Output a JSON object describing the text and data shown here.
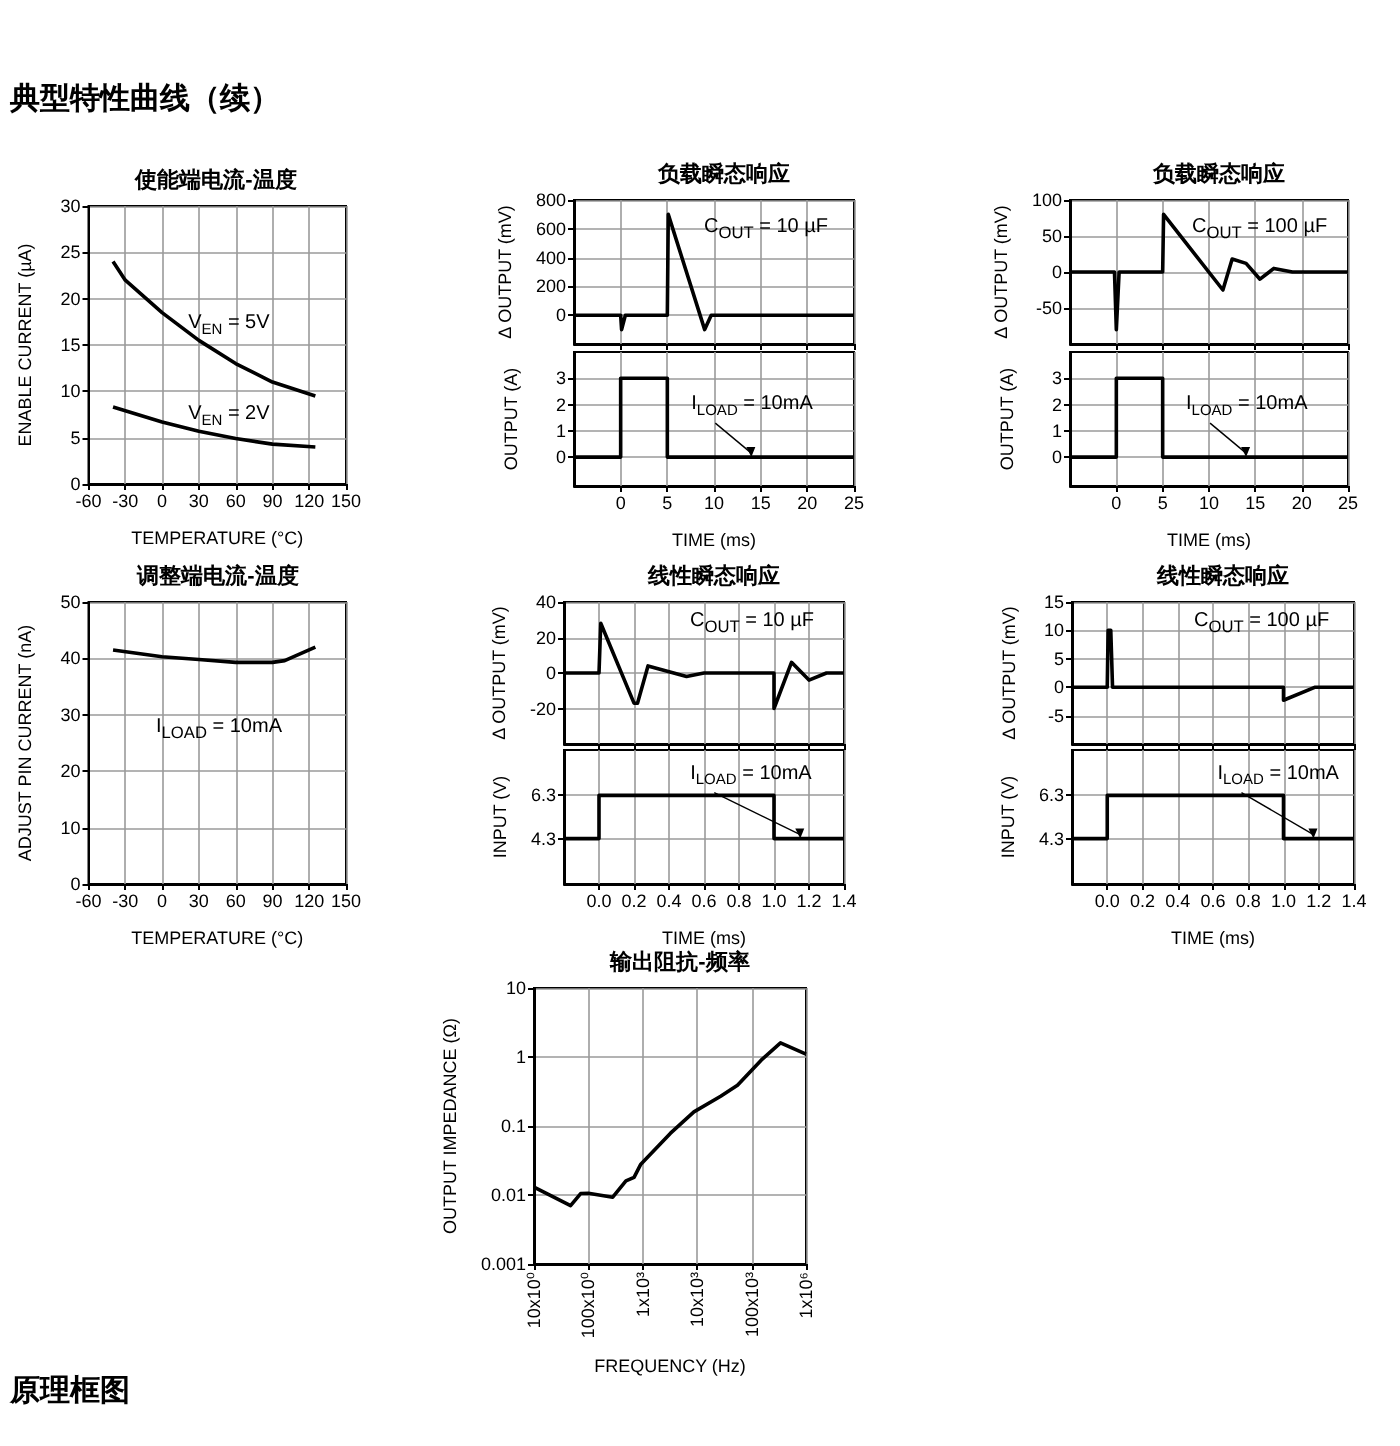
{
  "chart_data": [
    {
      "type": "line",
      "title": "使能端电流-温度",
      "xlabel": "TEMPERATURE (°C)",
      "ylabel": "ENABLE CURRENT (µA)",
      "xlim": [
        -60,
        150
      ],
      "xticks": [
        -60,
        -30,
        0,
        30,
        60,
        90,
        120,
        150
      ],
      "ylim": [
        0,
        30
      ],
      "yticks": [
        0,
        5,
        10,
        15,
        20,
        25,
        30
      ],
      "grid": true,
      "annotations": [
        "典型特性曲线（续）"
      ],
      "series": [
        {
          "name": "V$_{EN}$ = 5V",
          "color": "#000000",
          "x": [
            -40,
            -30,
            0,
            30,
            60,
            90,
            125
          ],
          "values": [
            24,
            22,
            18.5,
            15.5,
            13,
            11,
            9.5
          ]
        },
        {
          "name": "V$_{EN}$ = 2V",
          "color": "#000000",
          "x": [
            -40,
            0,
            30,
            60,
            90,
            125
          ],
          "values": [
            8.3,
            6.7,
            5.7,
            4.9,
            4.3,
            4
          ]
        }
      ]
    },
    {
      "type": "line",
      "title": "负载瞬态响应",
      "ylabel": "Δ OUTPUT (mV)",
      "xlim": [
        -5,
        25
      ],
      "xticks": [
        0,
        5,
        10,
        15,
        20,
        25
      ],
      "ylim": [
        -200,
        800
      ],
      "yticks": [
        0,
        200,
        400,
        600,
        800
      ],
      "tick_labels": "y",
      "grid": true,
      "annotations": [
        "C$_{OUT}$ = 10 µF"
      ],
      "series": [
        {
          "color": "#000000",
          "x": [
            -5,
            0,
            0.1,
            0.5,
            5,
            5.1,
            9,
            9.7,
            25
          ],
          "values": [
            0,
            0,
            -100,
            0,
            0,
            700,
            -100,
            0,
            0
          ]
        }
      ]
    },
    {
      "type": "line",
      "xlabel": "TIME (ms)",
      "ylabel": "OUTPUT (A)",
      "xlim": [
        -5,
        25
      ],
      "xticks": [
        0,
        5,
        10,
        15,
        20,
        25
      ],
      "ylim": [
        -1.1,
        4
      ],
      "yticks": [
        0,
        1,
        2,
        3
      ],
      "grid": true,
      "annotations": [
        {
          "text": "I$_{LOAD}$ = 10mA",
          "x": 14,
          "y": 0
        }
      ],
      "series": [
        {
          "color": "#000000",
          "x": [
            -5,
            0,
            0,
            5,
            5,
            25
          ],
          "values": [
            0,
            0,
            3,
            3,
            0,
            0
          ]
        }
      ]
    },
    {
      "type": "line",
      "title": "负载瞬态响应",
      "ylabel": "Δ OUTPUT (mV)",
      "xlim": [
        -5,
        25
      ],
      "xticks": [
        0,
        5,
        10,
        15,
        20,
        25
      ],
      "ylim": [
        -100,
        100
      ],
      "yticks": [
        -50,
        0,
        50,
        100
      ],
      "tick_labels": "y",
      "grid": true,
      "annotations": [
        "C$_{OUT}$ = 100 µF"
      ],
      "series": [
        {
          "color": "#000000",
          "x": [
            -5,
            -0.2,
            0,
            0.3,
            5,
            5.1,
            11.5,
            12.5,
            14,
            15.5,
            17,
            19,
            25
          ],
          "values": [
            0,
            0,
            -80,
            0,
            0,
            80,
            -25,
            18,
            12,
            -10,
            5,
            0,
            0
          ]
        }
      ]
    },
    {
      "type": "line",
      "xlabel": "TIME (ms)",
      "ylabel": "OUTPUT (A)",
      "xlim": [
        -5,
        25
      ],
      "xticks": [
        0,
        5,
        10,
        15,
        20,
        25
      ],
      "ylim": [
        -1.1,
        4
      ],
      "yticks": [
        0,
        1,
        2,
        3
      ],
      "grid": true,
      "annotations": [
        {
          "text": "I$_{LOAD}$ = 10mA",
          "x": 14,
          "y": 0
        }
      ],
      "series": [
        {
          "color": "#000000",
          "x": [
            -5,
            0,
            0,
            5,
            5,
            25
          ],
          "values": [
            0,
            0,
            3,
            3,
            0,
            0
          ]
        }
      ]
    },
    {
      "type": "line",
      "title": "调整端电流-温度",
      "xlabel": "TEMPERATURE (°C)",
      "ylabel": "ADJUST PIN CURRENT (nA)",
      "xlim": [
        -60,
        150
      ],
      "xticks": [
        -60,
        -30,
        0,
        30,
        60,
        90,
        120,
        150
      ],
      "ylim": [
        0,
        50
      ],
      "yticks": [
        0,
        10,
        20,
        30,
        40,
        50
      ],
      "grid": true,
      "annotations": [
        "I$_{LOAD}$ = 10mA"
      ],
      "series": [
        {
          "color": "#000000",
          "x": [
            -40,
            0,
            30,
            60,
            90,
            100,
            125
          ],
          "values": [
            41.5,
            40.3,
            39.8,
            39.3,
            39.3,
            39.6,
            42
          ]
        }
      ]
    },
    {
      "type": "line",
      "title": "线性瞬态响应",
      "ylabel": "Δ OUTPUT (mV)",
      "xlim": [
        -0.2,
        1.4
      ],
      "xticks": [
        0,
        0.2,
        0.4,
        0.6,
        0.8,
        1,
        1.2,
        1.4
      ],
      "ylim": [
        -40,
        40
      ],
      "yticks": [
        -20,
        0,
        20,
        40
      ],
      "tick_labels": "y",
      "grid": true,
      "annotations": [
        "C$_{OUT}$ = 10 µF"
      ],
      "series": [
        {
          "color": "#000000",
          "x": [
            -0.2,
            0,
            0.01,
            0.2,
            0.22,
            0.28,
            0.5,
            0.6,
            1,
            1,
            1.1,
            1.2,
            1.3,
            1.4
          ],
          "values": [
            0,
            0,
            28,
            -17,
            -17,
            4,
            -2,
            0,
            0,
            -20,
            6,
            -4,
            0,
            0
          ]
        }
      ]
    },
    {
      "type": "line",
      "xlabel": "TIME (ms)",
      "ylabel": "INPUT (V)",
      "xlim": [
        -0.2,
        1.4
      ],
      "xticks": [
        {
          "value": 0,
          "label": "0.0"
        },
        0.2,
        0.4,
        0.6,
        0.8,
        {
          "value": 1,
          "label": "1.0"
        },
        1.2,
        1.4
      ],
      "ylim": [
        2.2,
        8.4
      ],
      "yticks": [
        4.3,
        6.3
      ],
      "grid": true,
      "annotations": [
        {
          "text": "I$_{LOAD}$ = 10mA",
          "x": 1.15,
          "y": 4.3
        }
      ],
      "series": [
        {
          "color": "#000000",
          "x": [
            -0.2,
            0,
            0,
            1,
            1,
            1.4
          ],
          "values": [
            4.3,
            4.3,
            6.3,
            6.3,
            4.3,
            4.3
          ]
        }
      ]
    },
    {
      "type": "line",
      "title": "线性瞬态响应",
      "ylabel": "Δ OUTPUT (mV)",
      "xlim": [
        -0.2,
        1.4
      ],
      "xticks": [
        0,
        0.2,
        0.4,
        0.6,
        0.8,
        1,
        1.2,
        1.4
      ],
      "ylim": [
        -10,
        15
      ],
      "yticks": [
        -5,
        0,
        5,
        10,
        15
      ],
      "tick_labels": "y",
      "grid": true,
      "annotations": [
        "C$_{OUT}$ = 100 µF"
      ],
      "series": [
        {
          "color": "#000000",
          "x": [
            -0.2,
            0,
            0.005,
            0.02,
            0.03,
            1,
            1,
            1.18,
            1.4
          ],
          "values": [
            0,
            0,
            10,
            10,
            0,
            0,
            -2.3,
            0,
            0
          ]
        }
      ]
    },
    {
      "type": "line",
      "xlabel": "TIME (ms)",
      "ylabel": "INPUT (V)",
      "xlim": [
        -0.2,
        1.4
      ],
      "xticks": [
        {
          "value": 0,
          "label": "0.0"
        },
        0.2,
        0.4,
        0.6,
        0.8,
        {
          "value": 1,
          "label": "1.0"
        },
        1.2,
        1.4
      ],
      "ylim": [
        2.2,
        8.4
      ],
      "yticks": [
        4.3,
        6.3
      ],
      "grid": true,
      "annotations": [
        {
          "text": "I$_{LOAD}$ = 10mA",
          "x": 1.17,
          "y": 4.3
        }
      ],
      "series": [
        {
          "color": "#000000",
          "x": [
            -0.2,
            0,
            0,
            1,
            1,
            1.4
          ],
          "values": [
            4.3,
            4.3,
            6.3,
            6.3,
            4.3,
            4.3
          ]
        }
      ]
    },
    {
      "type": "line",
      "title": "输出阻抗-频率",
      "xlabel": "FREQUENCY (Hz)",
      "ylabel": "OUTPUT IMPEDANCE (Ω)",
      "log": "xy",
      "xlim": [
        10,
        1000000
      ],
      "xticks": [
        {
          "value": 10,
          "label": "10x10⁰"
        },
        {
          "value": 100,
          "label": "100x10⁰"
        },
        {
          "value": 1000,
          "label": "1x10³"
        },
        {
          "value": 10000,
          "label": "10x10³"
        },
        {
          "value": 100000,
          "label": "100x10³"
        },
        {
          "value": 1000000,
          "label": "1x10⁶"
        }
      ],
      "ylim": [
        0.001,
        10
      ],
      "yticks": [
        0.001,
        0.01,
        0.1,
        1,
        10
      ],
      "grid": true,
      "annotations": [
        "原理框图"
      ],
      "series": [
        {
          "color": "#000000",
          "x": [
            10,
            47,
            72,
            100,
            280,
            490,
            690,
            920,
            3200,
            8700,
            27000,
            55000,
            150000,
            340000,
            1000000
          ],
          "values": [
            0.013,
            0.007,
            0.0105,
            0.0106,
            0.0093,
            0.016,
            0.018,
            0.028,
            0.078,
            0.16,
            0.27,
            0.39,
            0.9,
            1.6,
            1.1
          ]
        }
      ]
    }
  ]
}
